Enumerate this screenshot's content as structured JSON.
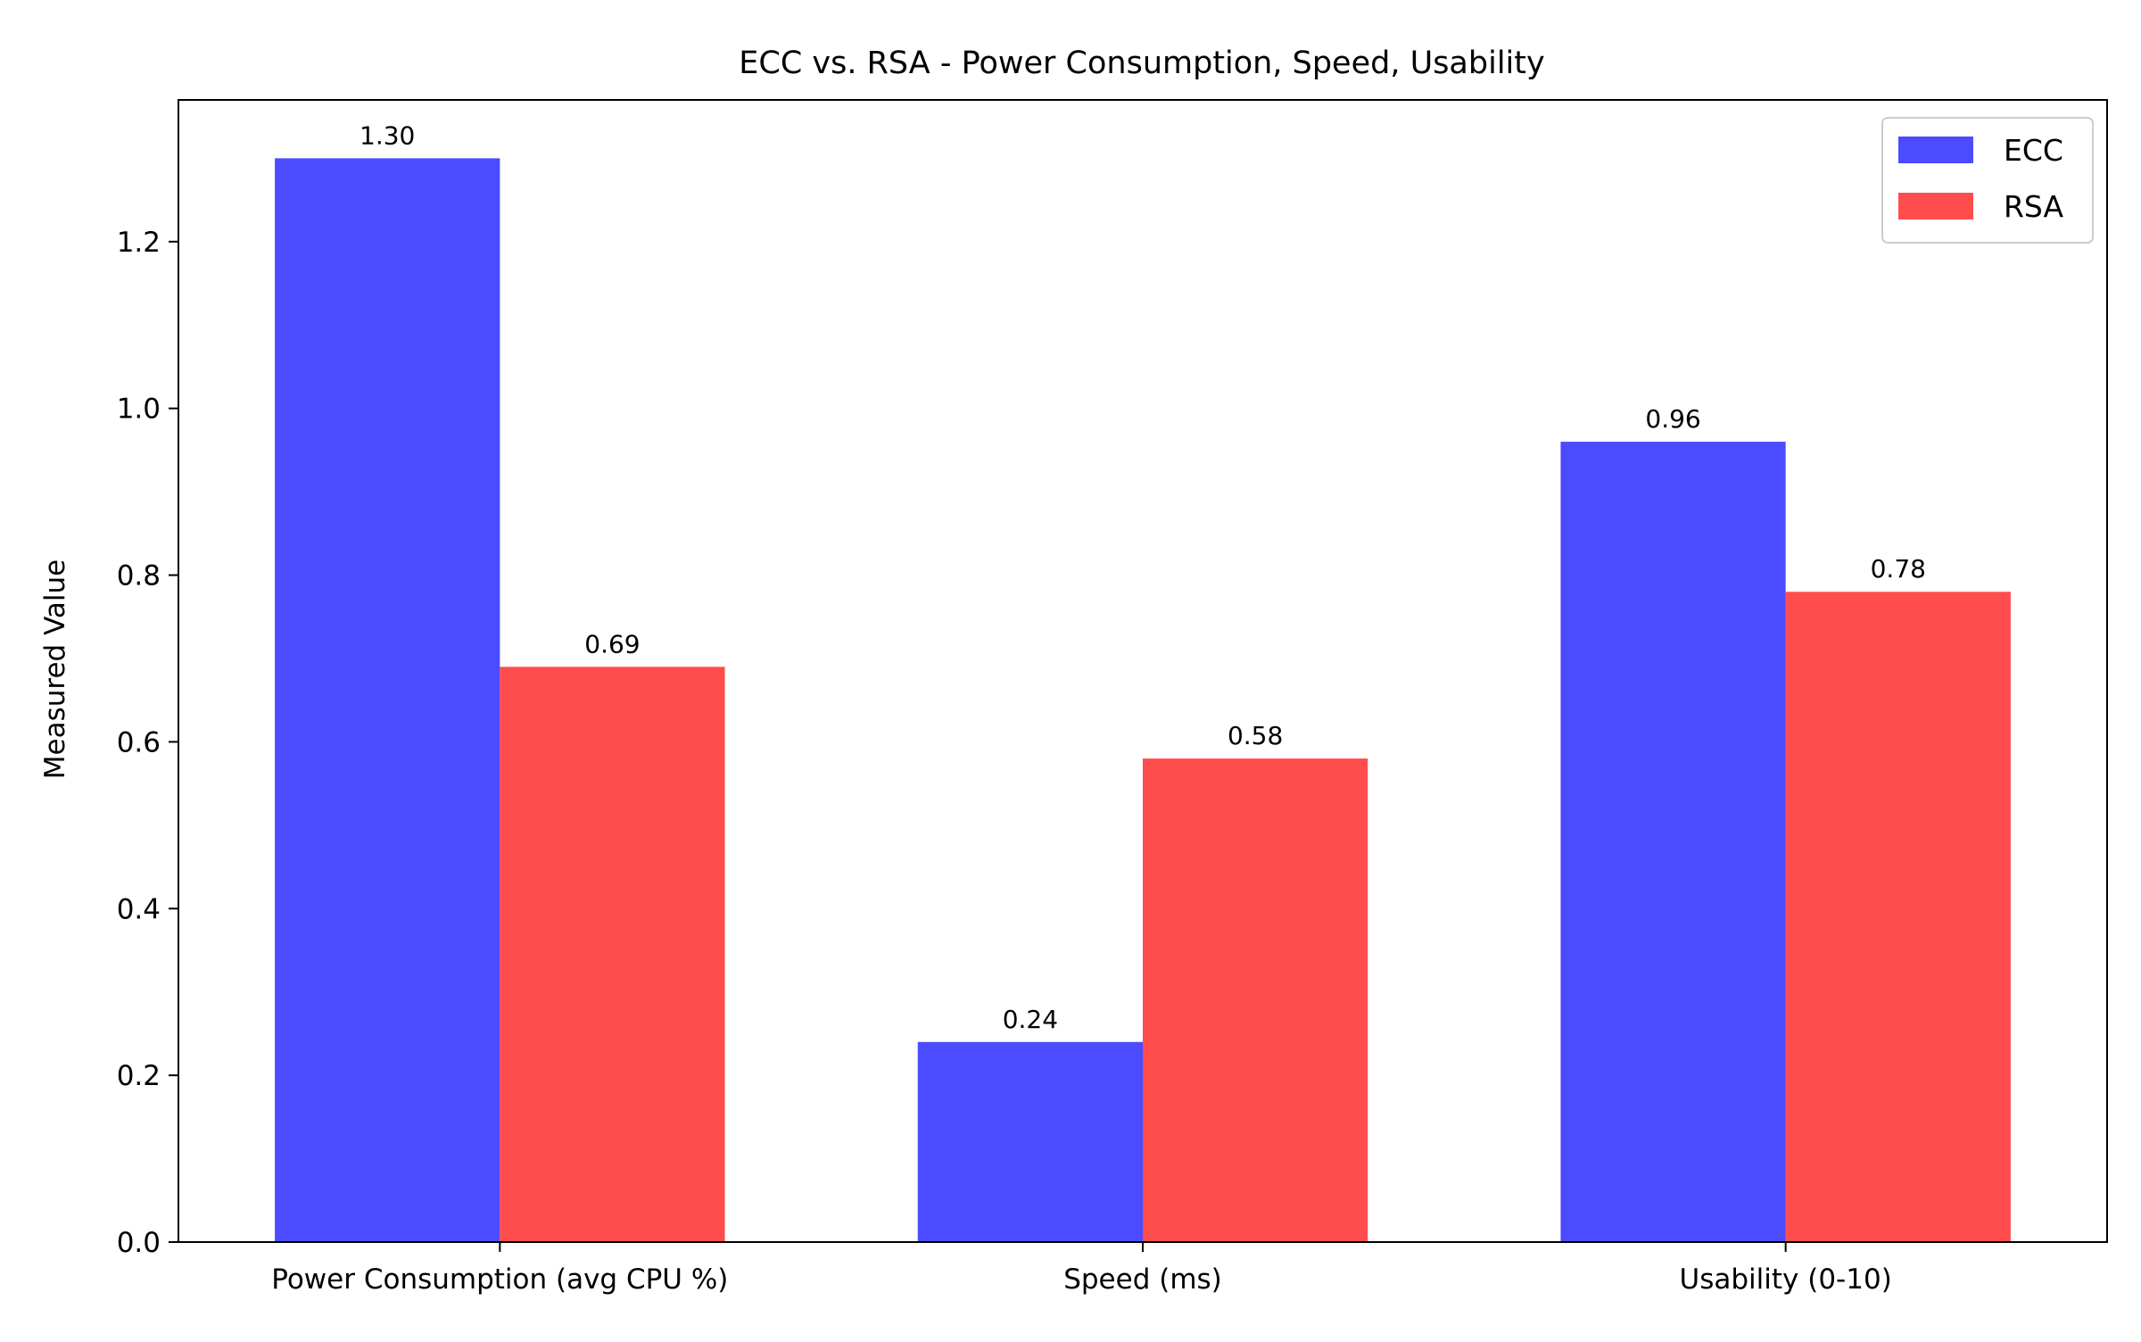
{
  "chart_data": {
    "type": "bar",
    "title": "ECC vs. RSA - Power Consumption, Speed, Usability",
    "xlabel": "",
    "ylabel": "Measured Value",
    "categories": [
      "Power Consumption (avg CPU %)",
      "Speed (ms)",
      "Usability (0-10)"
    ],
    "series": [
      {
        "name": "ECC",
        "values": [
          1.3,
          0.24,
          0.96
        ],
        "labels": [
          "1.30",
          "0.24",
          "0.96"
        ],
        "color": "#4b4bff"
      },
      {
        "name": "RSA",
        "values": [
          0.69,
          0.58,
          0.78
        ],
        "labels": [
          "0.69",
          "0.58",
          "0.78"
        ],
        "color": "#ff4d4d"
      }
    ],
    "ylim": [
      0,
      1.37
    ],
    "yticks": [
      0.0,
      0.2,
      0.4,
      0.6,
      0.8,
      1.0,
      1.2
    ],
    "ytick_labels": [
      "0.0",
      "0.2",
      "0.4",
      "0.6",
      "0.8",
      "1.0",
      "1.2"
    ],
    "grid": false,
    "legend_position": "top-right"
  }
}
